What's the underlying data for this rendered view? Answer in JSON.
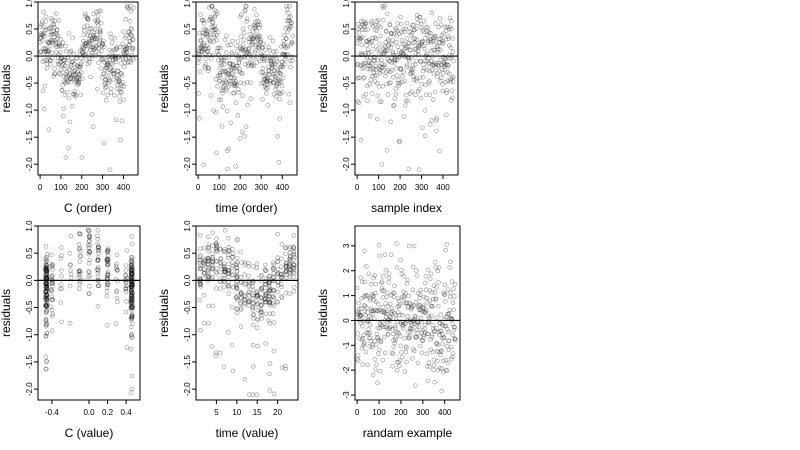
{
  "chart_data": [
    {
      "type": "scatter",
      "xlabel": "C (order)",
      "ylabel": "residuals",
      "xlim": [
        -10,
        470
      ],
      "ylim": [
        -2.2,
        1.0
      ],
      "xticks": [
        "0",
        "100",
        "200",
        "300",
        "400"
      ],
      "yticks": [
        "1.0",
        "0.5",
        "0.0",
        "-0.5",
        "-1.0",
        "-1.5",
        "-2.0"
      ],
      "hline": 0,
      "n_points": 450,
      "profile": "order",
      "marker": "open-circle"
    },
    {
      "type": "scatter",
      "xlabel": "time (order)",
      "ylabel": "residuals",
      "xlim": [
        -10,
        470
      ],
      "ylim": [
        -2.2,
        1.0
      ],
      "xticks": [
        "0",
        "100",
        "200",
        "300",
        "400"
      ],
      "yticks": [
        "1.0",
        "0.5",
        "0.0",
        "-0.5",
        "-1.0",
        "-1.5",
        "-2.0"
      ],
      "hline": 0,
      "n_points": 450,
      "profile": "order",
      "marker": "open-circle"
    },
    {
      "type": "scatter",
      "xlabel": "sample index",
      "ylabel": "residuals",
      "xlim": [
        -10,
        470
      ],
      "ylim": [
        -2.2,
        1.0
      ],
      "xticks": [
        "0",
        "100",
        "200",
        "300",
        "400"
      ],
      "yticks": [
        "1.0",
        "0.5",
        "0.0",
        "-0.5",
        "-1.0",
        "-1.5",
        "-2.0"
      ],
      "hline": 0,
      "n_points": 450,
      "profile": "index",
      "marker": "open-circle"
    },
    {
      "type": "scatter",
      "xlabel": "C (value)",
      "ylabel": "residuals",
      "xlim": [
        -0.55,
        0.55
      ],
      "ylim": [
        -2.2,
        1.0
      ],
      "xticks": [
        "-0.4",
        "0.0",
        "0.2",
        "0.4"
      ],
      "yticks": [
        "1.0",
        "0.5",
        "0.0",
        "-0.5",
        "-1.0",
        "-1.5",
        "-2.0"
      ],
      "hline": 0,
      "n_points": 450,
      "profile": "cvalue",
      "marker": "open-circle"
    },
    {
      "type": "scatter",
      "xlabel": "time (value)",
      "ylabel": "residuals",
      "xlim": [
        0,
        25
      ],
      "ylim": [
        -2.2,
        1.0
      ],
      "xticks": [
        "5",
        "10",
        "15",
        "20"
      ],
      "yticks": [
        "1.0",
        "0.5",
        "0.0",
        "-0.5",
        "-1.0",
        "-1.5",
        "-2.0"
      ],
      "hline": 0,
      "n_points": 450,
      "profile": "tvalue",
      "marker": "open-circle"
    },
    {
      "type": "scatter",
      "xlabel": "randam example",
      "ylabel": "residuals",
      "xlim": [
        -10,
        470
      ],
      "ylim": [
        -3.2,
        3.8
      ],
      "xticks": [
        "0",
        "100",
        "200",
        "300",
        "400"
      ],
      "yticks": [
        "3",
        "2",
        "1",
        "0",
        "-1",
        "-2",
        "-3"
      ],
      "hline": 0,
      "n_points": 450,
      "profile": "random",
      "marker": "open-circle"
    }
  ]
}
